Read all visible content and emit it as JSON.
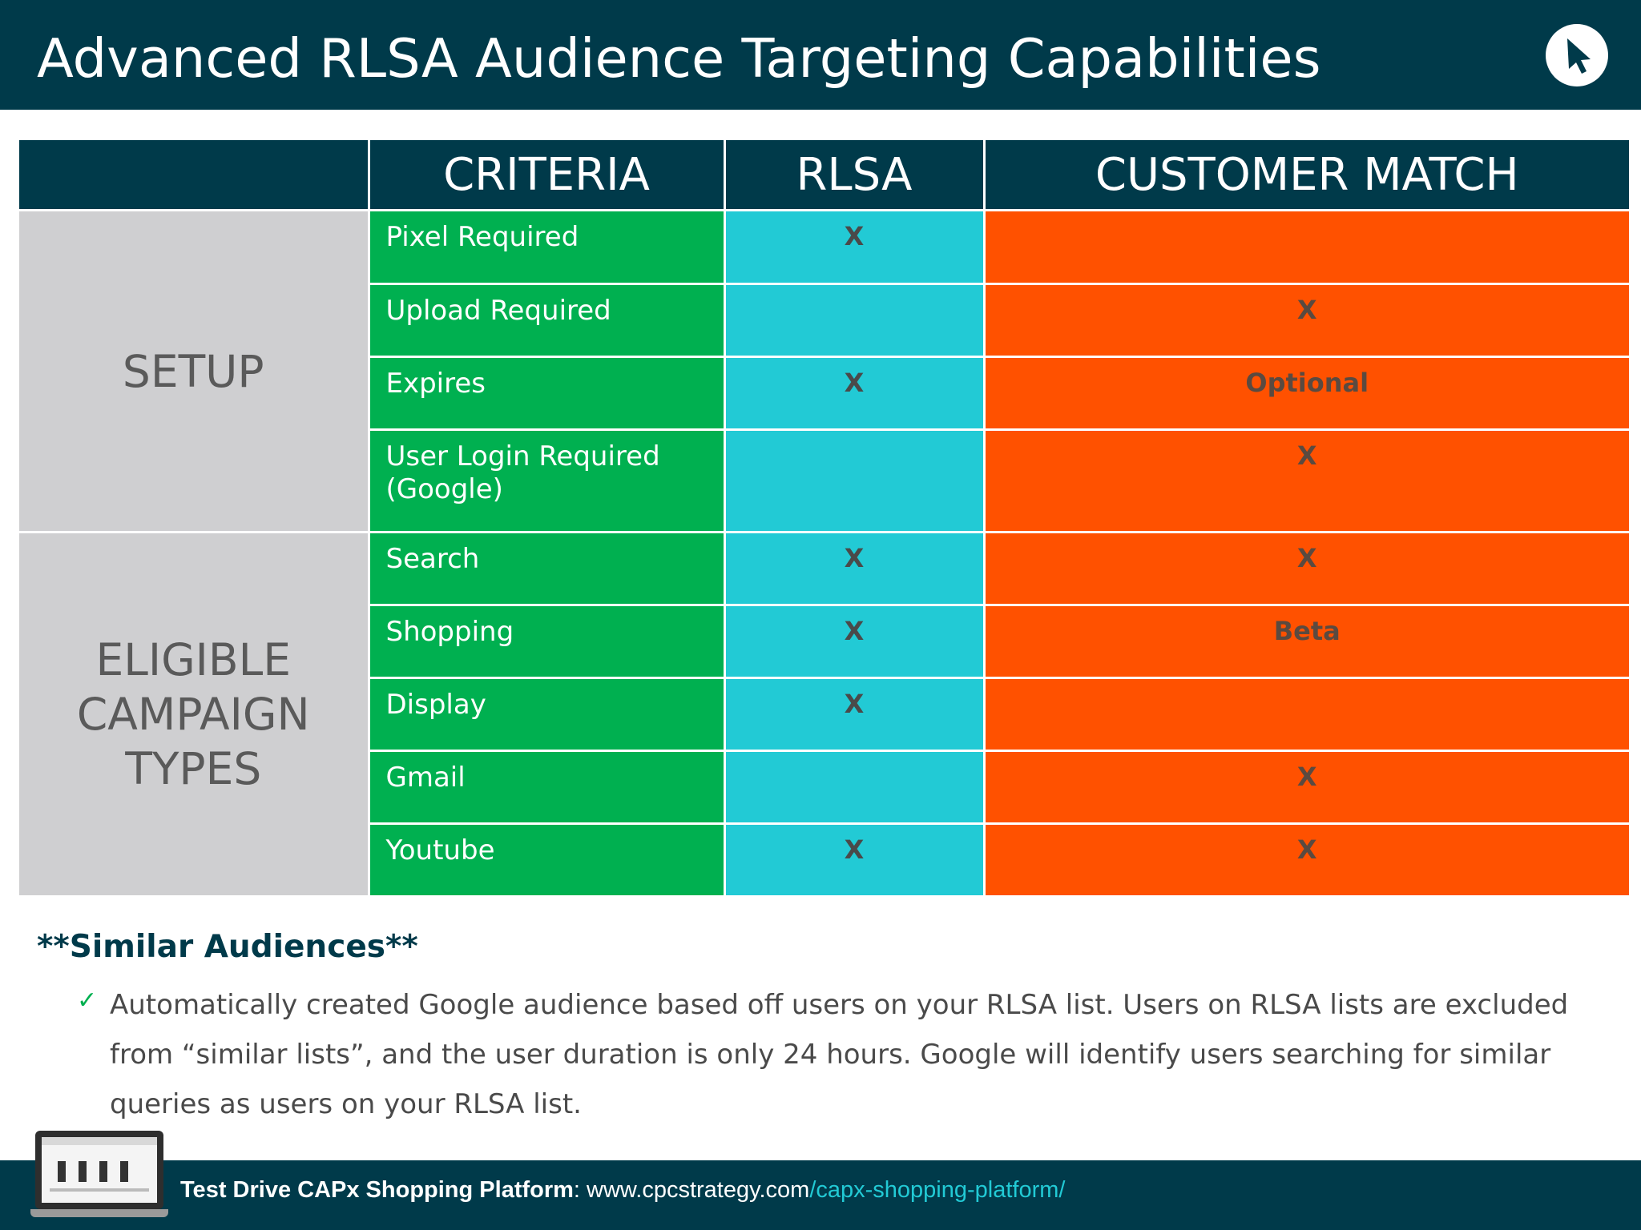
{
  "header": {
    "title": "Advanced RLSA Audience Targeting Capabilities",
    "logo_icon": "cursor-arrow-icon"
  },
  "table": {
    "columns": [
      "CRITERIA",
      "RLSA",
      "CUSTOMER MATCH"
    ],
    "colors": {
      "header": "#003a4a",
      "category": "#cfcfd1",
      "criteria": "#00b050",
      "rlsa": "#22cad5",
      "customer_match": "#ff5100"
    },
    "groups": [
      {
        "category": "SETUP",
        "rows": [
          {
            "criteria": "Pixel Required",
            "rlsa": "X",
            "customer_match": ""
          },
          {
            "criteria": "Upload Required",
            "rlsa": "",
            "customer_match": "X"
          },
          {
            "criteria": "Expires",
            "rlsa": "X",
            "customer_match": "Optional"
          },
          {
            "criteria": "User Login Required (Google)",
            "rlsa": "",
            "customer_match": "X"
          }
        ]
      },
      {
        "category": "ELIGIBLE CAMPAIGN TYPES",
        "rows": [
          {
            "criteria": "Search",
            "rlsa": "X",
            "customer_match": "X"
          },
          {
            "criteria": "Shopping",
            "rlsa": "X",
            "customer_match": "Beta"
          },
          {
            "criteria": "Display",
            "rlsa": "X",
            "customer_match": ""
          },
          {
            "criteria": "Gmail",
            "rlsa": "",
            "customer_match": "X"
          },
          {
            "criteria": "Youtube",
            "rlsa": "X",
            "customer_match": "X"
          }
        ]
      }
    ]
  },
  "similar": {
    "heading": "**Similar Audiences**",
    "text": "Automatically created Google audience based off users on your RLSA list. Users on RLSA lists are excluded from “similar lists”, and the user duration is only 24 hours. Google will identify users searching for similar queries as users on your RLSA list."
  },
  "footer": {
    "label": "Test Drive CAPx Shopping Platform",
    "separator": ": ",
    "domain": "www.cpcstrategy.com",
    "path": "/capx-shopping-platform/"
  }
}
